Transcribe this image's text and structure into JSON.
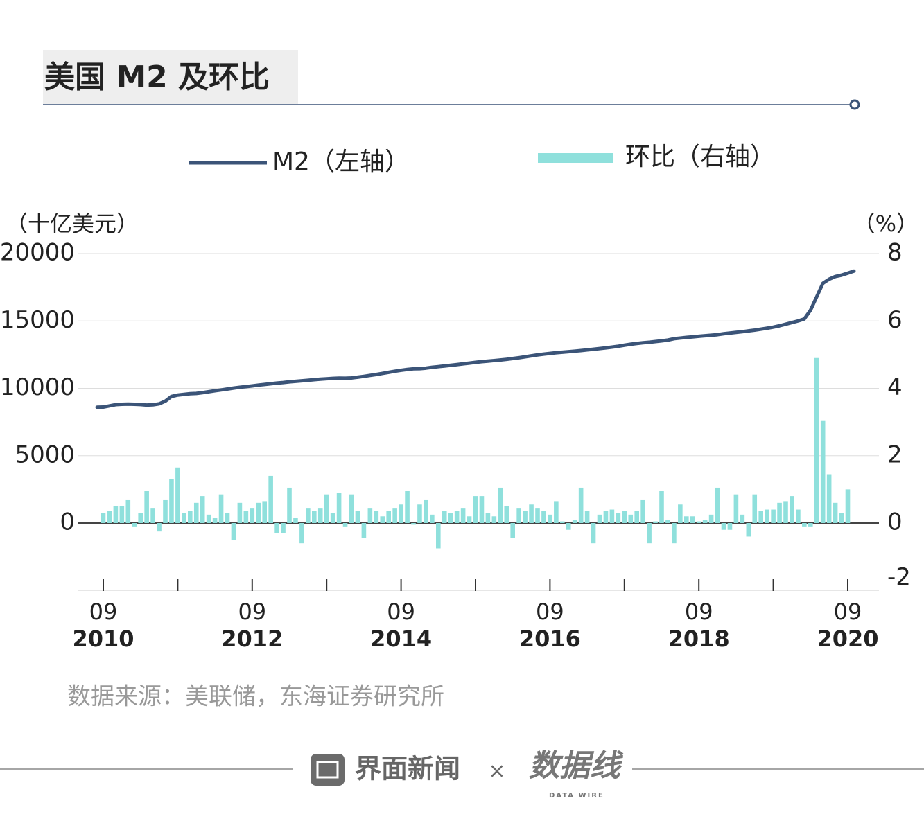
{
  "chart_data": {
    "type": "combo",
    "title": "美国 M2 及环比",
    "y_label": "（十亿美元）",
    "y2_label": "（%）",
    "source": "数据来源：美联储，东海证券研究所",
    "x": [
      "2010-08",
      "2010-09",
      "2010-10",
      "2010-11",
      "2010-12",
      "2011-01",
      "2011-02",
      "2011-03",
      "2011-04",
      "2011-05",
      "2011-06",
      "2011-07",
      "2011-08",
      "2011-09",
      "2011-10",
      "2011-11",
      "2011-12",
      "2012-01",
      "2012-02",
      "2012-03",
      "2012-04",
      "2012-05",
      "2012-06",
      "2012-07",
      "2012-08",
      "2012-09",
      "2012-10",
      "2012-11",
      "2012-12",
      "2013-01",
      "2013-02",
      "2013-03",
      "2013-04",
      "2013-05",
      "2013-06",
      "2013-07",
      "2013-08",
      "2013-09",
      "2013-10",
      "2013-11",
      "2013-12",
      "2014-01",
      "2014-02",
      "2014-03",
      "2014-04",
      "2014-05",
      "2014-06",
      "2014-07",
      "2014-08",
      "2014-09",
      "2014-10",
      "2014-11",
      "2014-12",
      "2015-01",
      "2015-02",
      "2015-03",
      "2015-04",
      "2015-05",
      "2015-06",
      "2015-07",
      "2015-08",
      "2015-09",
      "2015-10",
      "2015-11",
      "2015-12",
      "2016-01",
      "2016-02",
      "2016-03",
      "2016-04",
      "2016-05",
      "2016-06",
      "2016-07",
      "2016-08",
      "2016-09",
      "2016-10",
      "2016-11",
      "2016-12",
      "2017-01",
      "2017-02",
      "2017-03",
      "2017-04",
      "2017-05",
      "2017-06",
      "2017-07",
      "2017-08",
      "2017-09",
      "2017-10",
      "2017-11",
      "2017-12",
      "2018-01",
      "2018-02",
      "2018-03",
      "2018-04",
      "2018-05",
      "2018-06",
      "2018-07",
      "2018-08",
      "2018-09",
      "2018-10",
      "2018-11",
      "2018-12",
      "2019-01",
      "2019-02",
      "2019-03",
      "2019-04",
      "2019-05",
      "2019-06",
      "2019-07",
      "2019-08",
      "2019-09",
      "2019-10",
      "2019-11",
      "2019-12",
      "2020-01",
      "2020-02",
      "2020-03",
      "2020-04",
      "2020-05",
      "2020-06",
      "2020-07",
      "2020-08",
      "2020-09",
      "2020-10"
    ],
    "series": [
      {
        "name": "M2（左轴）",
        "type": "line",
        "color": "#3b5478",
        "values": [
          8600,
          8610,
          8700,
          8790,
          8820,
          8830,
          8820,
          8800,
          8760,
          8780,
          8850,
          9050,
          9400,
          9500,
          9550,
          9600,
          9620,
          9680,
          9750,
          9820,
          9880,
          9950,
          10020,
          10080,
          10130,
          10180,
          10240,
          10290,
          10340,
          10390,
          10430,
          10480,
          10520,
          10560,
          10600,
          10640,
          10680,
          10710,
          10740,
          10760,
          10750,
          10770,
          10830,
          10890,
          10960,
          11030,
          11110,
          11190,
          11270,
          11340,
          11400,
          11450,
          11460,
          11500,
          11560,
          11610,
          11660,
          11710,
          11760,
          11820,
          11870,
          11930,
          11980,
          12020,
          12060,
          12100,
          12150,
          12210,
          12270,
          12340,
          12410,
          12480,
          12540,
          12590,
          12640,
          12680,
          12720,
          12760,
          12800,
          12850,
          12900,
          12950,
          13000,
          13060,
          13120,
          13200,
          13270,
          13330,
          13380,
          13420,
          13470,
          13520,
          13580,
          13680,
          13730,
          13780,
          13820,
          13860,
          13900,
          13940,
          13980,
          14050,
          14100,
          14150,
          14200,
          14260,
          14320,
          14390,
          14460,
          14540,
          14640,
          14760,
          14880,
          15000,
          15150,
          15800,
          16800,
          17800,
          18100,
          18300,
          18400,
          18550,
          18700
        ]
      },
      {
        "name": "环比（右轴）",
        "type": "bar",
        "axis": "y2",
        "color": "#8fe0dc",
        "values": [
          null,
          0.3,
          0.35,
          0.5,
          0.5,
          0.7,
          -0.1,
          0.3,
          0.95,
          0.45,
          -0.25,
          0.7,
          1.3,
          1.65,
          0.3,
          0.35,
          0.6,
          0.8,
          0.25,
          0.15,
          0.85,
          0.3,
          -0.5,
          0.6,
          0.35,
          0.45,
          0.6,
          0.65,
          1.4,
          -0.3,
          -0.3,
          1.05,
          0.15,
          -0.6,
          0.45,
          0.35,
          0.45,
          0.85,
          0.3,
          0.9,
          -0.1,
          0.85,
          0.35,
          -0.45,
          0.45,
          0.35,
          0.2,
          0.35,
          0.45,
          0.55,
          0.95,
          -0.05,
          0.55,
          0.7,
          0.25,
          -0.75,
          0.35,
          0.3,
          0.35,
          0.45,
          0.2,
          0.8,
          0.8,
          0.3,
          0.2,
          1.05,
          0.5,
          -0.45,
          0.45,
          0.35,
          0.55,
          0.45,
          0.35,
          0.25,
          0.65,
          0.05,
          -0.2,
          0.1,
          1.05,
          0.35,
          -0.6,
          0.25,
          0.35,
          0.4,
          0.3,
          0.35,
          0.25,
          0.35,
          0.7,
          -0.6,
          0.05,
          0.95,
          0.1,
          -0.6,
          0.55,
          0.2,
          0.2,
          0.05,
          0.1,
          0.25,
          1.05,
          -0.2,
          -0.2,
          0.85,
          0.25,
          -0.4,
          0.85,
          0.35,
          0.4,
          0.4,
          0.6,
          0.65,
          0.8,
          0.4,
          -0.1,
          -0.1,
          4.9,
          3.05,
          1.45,
          0.6,
          0.3,
          1.0,
          null
        ]
      }
    ],
    "ylim": [
      -5000,
      20000
    ],
    "yticks": [
      0,
      5000,
      10000,
      15000,
      20000
    ],
    "y2lim": [
      -2,
      8
    ],
    "y2ticks": [
      -2,
      0,
      2,
      4,
      6,
      8
    ],
    "xticks": [
      {
        "value": "2010-09",
        "label": [
          "09",
          "2010"
        ]
      },
      {
        "value": "2011-09",
        "label": null
      },
      {
        "value": "2012-09",
        "label": [
          "09",
          "2012"
        ]
      },
      {
        "value": "2013-09",
        "label": null
      },
      {
        "value": "2014-09",
        "label": [
          "09",
          "2014"
        ]
      },
      {
        "value": "2015-09",
        "label": null
      },
      {
        "value": "2016-09",
        "label": [
          "09",
          "2016"
        ]
      },
      {
        "value": "2017-09",
        "label": null
      },
      {
        "value": "2018-09",
        "label": [
          "09",
          "2018"
        ]
      },
      {
        "value": "2019-09",
        "label": null
      },
      {
        "value": "2020-09",
        "label": [
          "09",
          "2020"
        ]
      }
    ],
    "grid": true
  },
  "footer": {
    "brand": "界面新闻",
    "times": "×",
    "partner": "数据线",
    "partner_sub": "DATA WIRE"
  }
}
